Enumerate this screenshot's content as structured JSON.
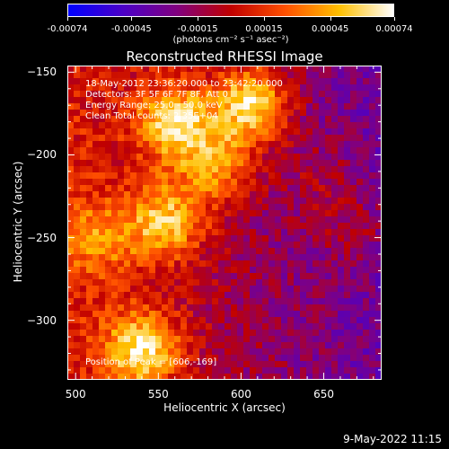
{
  "chart_data": {
    "type": "heatmap",
    "title": "Reconstructed RHESSI Image",
    "xlabel": "Heliocentric X (arcsec)",
    "ylabel": "Heliocentric Y (arcsec)",
    "xlim": [
      495,
      685
    ],
    "ylim": [
      -336,
      -146
    ],
    "xticks": [
      500,
      550,
      600,
      650
    ],
    "yticks": [
      -150,
      -200,
      -250,
      -300
    ],
    "colorbar": {
      "range": [
        -0.00074,
        0.00074
      ],
      "tick_values": [
        -0.00074,
        -0.00045,
        -0.00015,
        0.00015,
        0.00045,
        0.00074
      ],
      "tick_labels": [
        "-0.00074",
        "-0.00045",
        "-0.00015",
        "0.00015",
        "0.00045",
        "0.00074"
      ],
      "units": "(photons cm⁻² s⁻¹ asec⁻²)",
      "colors": [
        "#0000ff",
        "#4b00c8",
        "#800080",
        "#c00000",
        "#ff5000",
        "#ffc000",
        "#ffffff"
      ]
    },
    "sources": [
      {
        "x": 606,
        "y": -169,
        "peak": 0.00074
      },
      {
        "x": 560,
        "y": -180,
        "peak": 0.00065
      },
      {
        "x": 585,
        "y": -205,
        "peak": 0.0005
      },
      {
        "x": 555,
        "y": -240,
        "peak": 0.00058
      },
      {
        "x": 515,
        "y": -250,
        "peak": 0.00035
      },
      {
        "x": 540,
        "y": -318,
        "peak": 0.00066
      },
      {
        "x": 650,
        "y": -215,
        "peak": 0.00015
      },
      {
        "x": 670,
        "y": -245,
        "peak": 0.00018
      }
    ],
    "annotations": {
      "time_range": "18-May-2012 23:36:20.000 to 23:42:20.000",
      "detectors": "Detectors: 3F 5F 6F 7F 8F, Att 0",
      "energy": "Energy Range: 25.0 - 50.0 keV",
      "method": "Clean     Total counts: 2.35E+04",
      "peak": "Position of Peak = [606,-169]"
    }
  },
  "footer": {
    "timestamp": "9-May-2022 11:15"
  }
}
